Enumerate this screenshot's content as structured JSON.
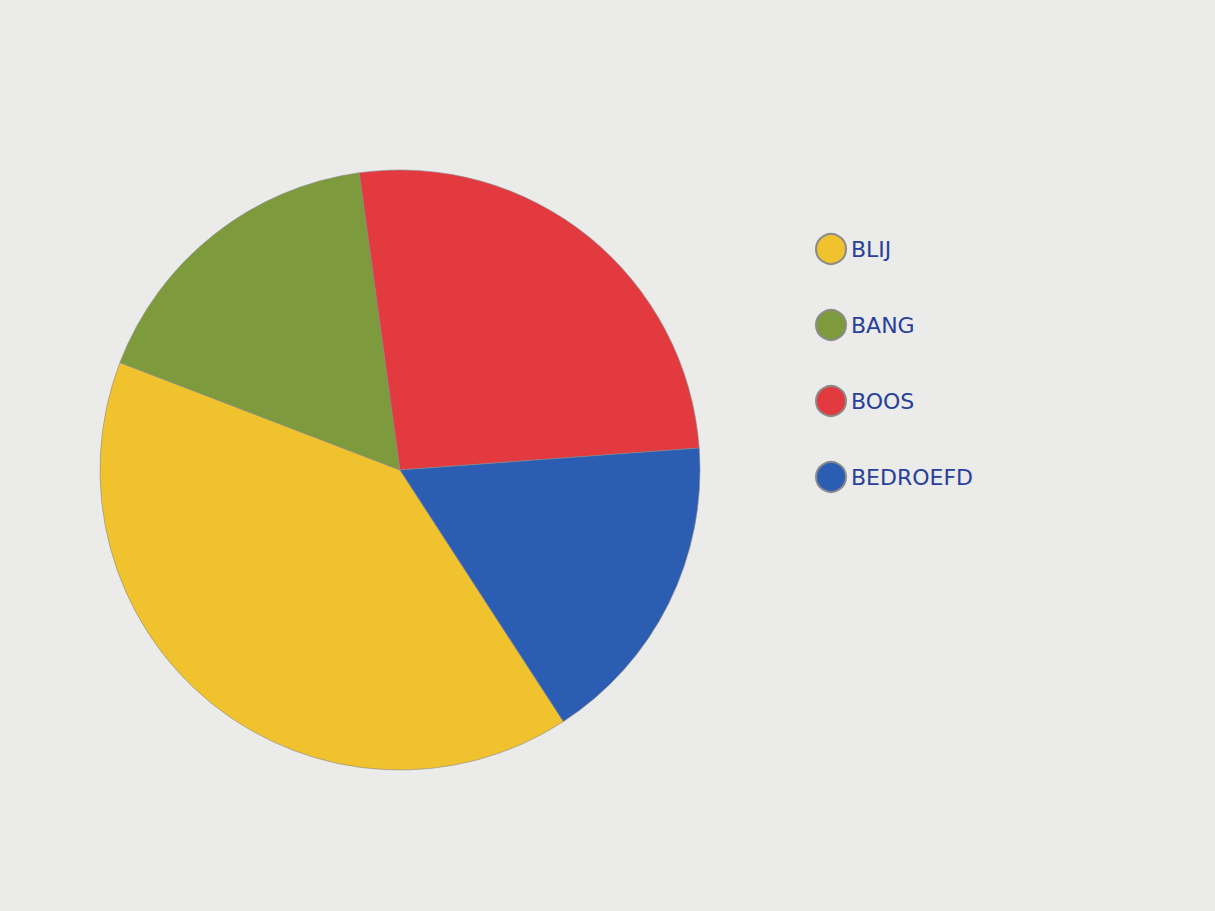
{
  "chart_data": {
    "type": "pie",
    "categories": [
      "BLIJ",
      "BANG",
      "BOOS",
      "BEDROEFD"
    ],
    "values": [
      40,
      17,
      26,
      17
    ],
    "colors": [
      "#f0c22e",
      "#7d9a3c",
      "#e23a3f",
      "#2b5db3"
    ],
    "legend": "right"
  }
}
